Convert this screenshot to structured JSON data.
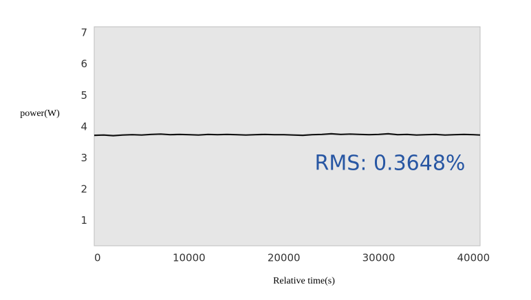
{
  "chart_data": {
    "type": "line",
    "y_label": "power(W)",
    "x_label": "Relative time(s)",
    "annotation": "RMS: 0.3648%",
    "xlim": [
      0,
      40700
    ],
    "xticks": [
      0,
      10000,
      20000,
      30000,
      40000
    ],
    "ylim": [
      0.2,
      7.2
    ],
    "yticks": [
      1,
      2,
      3,
      4,
      5,
      6,
      7
    ],
    "grid": false,
    "series": [
      {
        "name": "power",
        "color": "#111111",
        "x": [
          0,
          1000,
          2000,
          3000,
          4000,
          5000,
          6000,
          7000,
          8000,
          9000,
          10000,
          11000,
          12000,
          13000,
          14000,
          15000,
          16000,
          17000,
          18000,
          19000,
          20000,
          21000,
          22000,
          23000,
          24000,
          25000,
          26000,
          27000,
          28000,
          29000,
          30000,
          31000,
          32000,
          33000,
          34000,
          35000,
          36000,
          37000,
          38000,
          39000,
          40000,
          40700
        ],
        "values": [
          3.73,
          3.74,
          3.72,
          3.74,
          3.75,
          3.74,
          3.76,
          3.77,
          3.75,
          3.76,
          3.75,
          3.74,
          3.76,
          3.75,
          3.76,
          3.75,
          3.74,
          3.75,
          3.76,
          3.75,
          3.75,
          3.74,
          3.73,
          3.75,
          3.76,
          3.78,
          3.76,
          3.77,
          3.76,
          3.75,
          3.76,
          3.78,
          3.75,
          3.76,
          3.74,
          3.75,
          3.76,
          3.74,
          3.75,
          3.76,
          3.75,
          3.74
        ]
      }
    ]
  }
}
